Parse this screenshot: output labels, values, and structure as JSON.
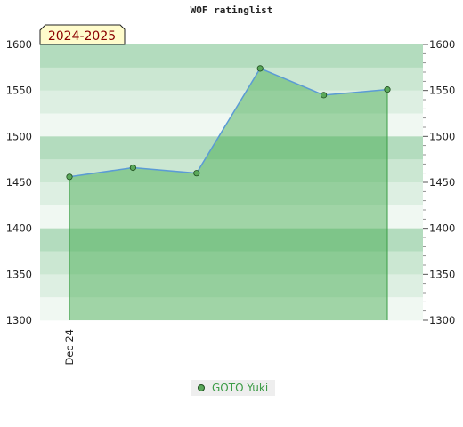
{
  "chart_data": {
    "type": "area",
    "title": "WOF ratinglist",
    "season_label": "2024-2025",
    "x_tick_labels": [
      "Dec 24"
    ],
    "ylim": [
      1300,
      1600
    ],
    "y_ticks": [
      1300,
      1350,
      1400,
      1450,
      1500,
      1550,
      1600
    ],
    "series": [
      {
        "name": "GOTO Yuki",
        "values": [
          1456,
          1466,
          1460,
          1574,
          1545,
          1551
        ]
      }
    ],
    "colors": {
      "line": "#5b9bd5",
      "fill": "#3ea84a",
      "marker": "#5aa85a",
      "legend_text": "#3d9c47",
      "season_box": "#fffccc",
      "season_text": "#8b0000"
    },
    "grid": true,
    "legend_position": "bottom"
  }
}
